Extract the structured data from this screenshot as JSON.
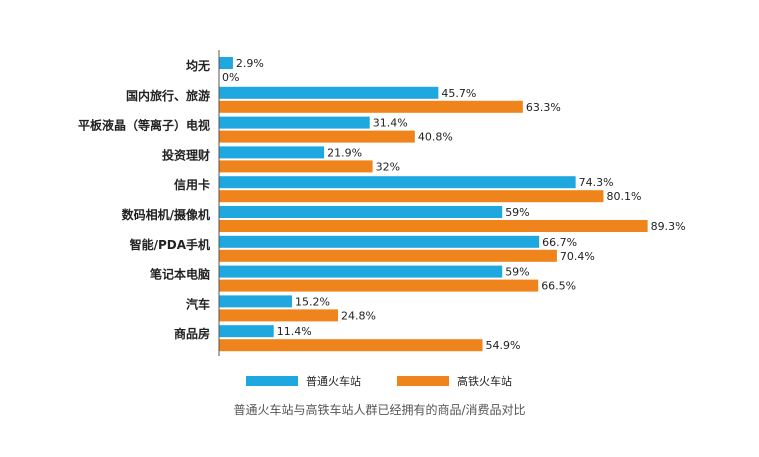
{
  "caption": "普通火车站与高铁车站人群已经拥有的商品/消费品对比",
  "colors": {
    "series1": "#1fa7e0",
    "series2": "#f0841c",
    "axis": "#555555"
  },
  "chart_data": {
    "type": "bar",
    "orientation": "horizontal",
    "categories": [
      "均无",
      "国内旅行、旅游",
      "平板液晶（等离子）电视",
      "投资理财",
      "信用卡",
      "数码相机/摄像机",
      "智能/PDA手机",
      "笔记本电脑",
      "汽车",
      "商品房"
    ],
    "series": [
      {
        "name": "普通火车站",
        "values": [
          2.9,
          45.7,
          31.4,
          21.9,
          74.3,
          59,
          66.7,
          59,
          15.2,
          11.4
        ],
        "labels": [
          "2.9%",
          "45.7%",
          "31.4%",
          "21.9%",
          "74.3%",
          "59%",
          "66.7%",
          "59%",
          "15.2%",
          "11.4%"
        ]
      },
      {
        "name": "高铁火车站",
        "values": [
          0,
          63.3,
          40.8,
          32,
          80.1,
          89.3,
          70.4,
          66.5,
          24.8,
          54.9
        ],
        "labels": [
          "0%",
          "63.3%",
          "40.8%",
          "32%",
          "80.1%",
          "89.3%",
          "70.4%",
          "66.5%",
          "24.8%",
          "54.9%"
        ]
      }
    ],
    "xlim": [
      0,
      100
    ],
    "legend_position": "bottom",
    "grid": false
  }
}
